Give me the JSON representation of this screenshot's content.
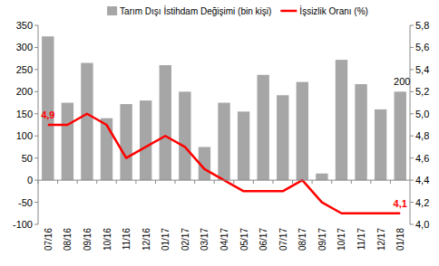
{
  "chart_data": {
    "type": "bar",
    "categories": [
      "07/16",
      "08/16",
      "09/16",
      "10/16",
      "11/16",
      "12/16",
      "01/17",
      "02/17",
      "03/17",
      "04/17",
      "05/17",
      "06/17",
      "07/17",
      "08/17",
      "09/17",
      "10/17",
      "11/17",
      "12/17",
      "01/18"
    ],
    "series": [
      {
        "name": "Tarım Dışı İstihdam Değişimi (bin kişi)",
        "type": "bar",
        "color": "#a6a6a6",
        "values": [
          325,
          175,
          265,
          140,
          172,
          180,
          260,
          200,
          75,
          175,
          155,
          238,
          192,
          222,
          15,
          272,
          217,
          160,
          200
        ],
        "data_labels": true,
        "value_labels": [
          null,
          null,
          null,
          null,
          null,
          null,
          null,
          null,
          null,
          null,
          null,
          null,
          null,
          null,
          null,
          null,
          null,
          null,
          "200"
        ]
      },
      {
        "name": "İşsizlik Oranı (%)",
        "type": "line",
        "color": "#ff0000",
        "axis": "y2",
        "values": [
          4.9,
          4.9,
          5.0,
          4.9,
          4.6,
          4.7,
          4.8,
          4.7,
          4.5,
          4.4,
          4.3,
          4.3,
          4.3,
          4.4,
          4.2,
          4.1,
          4.1,
          4.1,
          4.1
        ],
        "data_labels": true,
        "value_labels": [
          "4,9",
          null,
          null,
          null,
          null,
          null,
          null,
          null,
          null,
          null,
          null,
          null,
          null,
          null,
          null,
          null,
          null,
          null,
          "4,1"
        ]
      }
    ],
    "ylim": [
      -100,
      350
    ],
    "yticks": [
      -100,
      -50,
      0,
      50,
      100,
      150,
      200,
      250,
      300,
      350
    ],
    "y2lim": [
      4.0,
      5.8
    ],
    "y2ticks": [
      {
        "value": 4.0,
        "label": "4,0"
      },
      {
        "value": 4.2,
        "label": "4,2"
      },
      {
        "value": 4.4,
        "label": "4,4"
      },
      {
        "value": 4.6,
        "label": "4,6"
      },
      {
        "value": 4.8,
        "label": "4,8"
      },
      {
        "value": 5.0,
        "label": "5,0"
      },
      {
        "value": 5.2,
        "label": "5,2"
      },
      {
        "value": 5.4,
        "label": "5,4"
      },
      {
        "value": 5.6,
        "label": "5,6"
      },
      {
        "value": 5.8,
        "label": "5,8"
      }
    ],
    "grid": false,
    "legend": "top"
  }
}
